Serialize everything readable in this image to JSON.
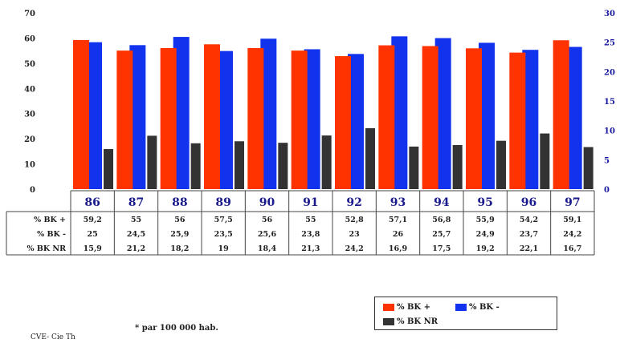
{
  "chart_data": {
    "type": "bar",
    "categories": [
      "86",
      "87",
      "88",
      "89",
      "90",
      "91",
      "92",
      "93",
      "94",
      "95",
      "96",
      "97"
    ],
    "series": [
      {
        "name": "% BK +",
        "axis": "left",
        "color": "#ff3300",
        "values": [
          59.2,
          55,
          56,
          57.5,
          56,
          55,
          52.8,
          57.1,
          56.8,
          55.9,
          54.2,
          59.1
        ],
        "table_labels": [
          "59,2",
          "55",
          "56",
          "57,5",
          "56",
          "55",
          "52,8",
          "57,1",
          "56,8",
          "55,9",
          "54,2",
          "59,1"
        ]
      },
      {
        "name": "% BK -",
        "axis": "right",
        "color": "#1133ee",
        "values": [
          25,
          24.5,
          25.9,
          23.5,
          25.6,
          23.8,
          23,
          26,
          25.7,
          24.9,
          23.7,
          24.2
        ],
        "table_labels": [
          "25",
          "24,5",
          "25,9",
          "23,5",
          "25,6",
          "23,8",
          "23",
          "26",
          "25,7",
          "24,9",
          "23,7",
          "24,2"
        ]
      },
      {
        "name": "% BK NR",
        "axis": "left",
        "color": "#333333",
        "values": [
          15.9,
          21.2,
          18.2,
          19,
          18.4,
          21.3,
          24.2,
          16.9,
          17.5,
          19.2,
          22.1,
          16.7
        ],
        "table_labels": [
          "15,9",
          "21,2",
          "18,2",
          "19",
          "18,4",
          "21,3",
          "24,2",
          "16,9",
          "17,5",
          "19,2",
          "22,1",
          "16,7"
        ]
      }
    ],
    "left_axis": {
      "ylim": [
        0,
        70
      ],
      "ticks": [
        "0",
        "10",
        "20",
        "30",
        "40",
        "50",
        "60",
        "70"
      ]
    },
    "right_axis": {
      "ylim": [
        0,
        30
      ],
      "ticks": [
        "0",
        "5",
        "10",
        "15",
        "20",
        "25",
        "30"
      ]
    },
    "table_row_labels": [
      "% BK +",
      "% BK -",
      "% BK NR"
    ],
    "legend": {
      "position": "bottom-right",
      "items": [
        {
          "label": "% BK +",
          "color": "#ff3300"
        },
        {
          "label": "% BK -",
          "color": "#1133ee"
        },
        {
          "label": "% BK NR",
          "color": "#333333"
        }
      ]
    },
    "grid": false
  },
  "footer": {
    "note": "*   par 100 000 hab.",
    "source": "CVE- Cie Th"
  }
}
